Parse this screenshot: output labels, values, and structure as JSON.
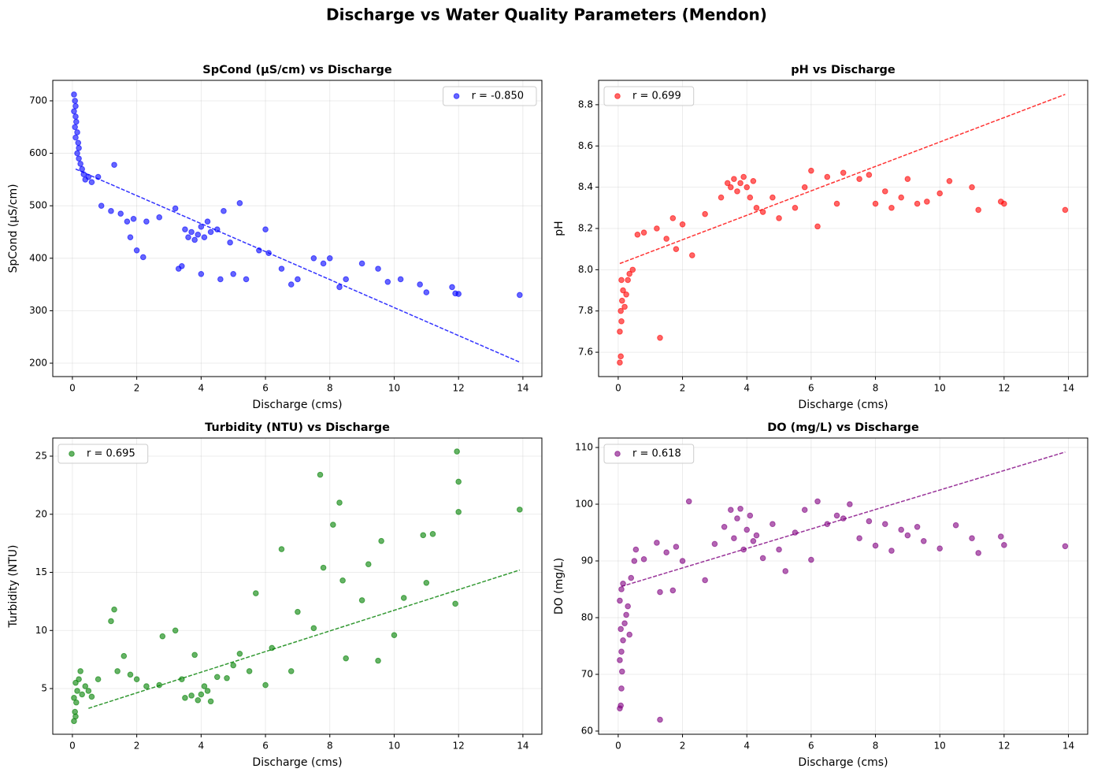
{
  "title": "Discharge vs Water Quality Parameters (Mendon)",
  "chart_data": [
    {
      "type": "scatter",
      "title": "SpCond (µS/cm) vs Discharge",
      "xlabel": "Discharge (cms)",
      "ylabel": "SpCond (µS/cm)",
      "x": [
        0.05,
        0.08,
        0.1,
        0.05,
        0.1,
        0.12,
        0.08,
        0.15,
        0.1,
        0.18,
        0.2,
        0.15,
        0.2,
        0.25,
        0.3,
        0.35,
        0.4,
        0.5,
        0.6,
        0.8,
        0.9,
        1.2,
        1.3,
        1.5,
        1.7,
        1.8,
        1.9,
        2.0,
        2.2,
        2.3,
        2.7,
        3.2,
        3.3,
        3.4,
        3.5,
        3.6,
        3.7,
        3.8,
        3.9,
        4.0,
        4.1,
        4.2,
        4.3,
        4.5,
        4.0,
        4.6,
        4.7,
        4.9,
        5.0,
        5.2,
        5.4,
        5.8,
        6.0,
        6.1,
        6.5,
        6.8,
        7.0,
        7.5,
        7.8,
        8.0,
        8.3,
        8.5,
        9.0,
        9.5,
        9.8,
        10.2,
        10.8,
        11.0,
        11.8,
        11.9,
        12.0,
        13.9
      ],
      "series": [
        {
          "name": "r = -0.850",
          "color": "blue",
          "values": [
            712,
            700,
            690,
            680,
            670,
            660,
            650,
            640,
            630,
            620,
            610,
            600,
            590,
            580,
            570,
            560,
            550,
            555,
            545,
            555,
            500,
            490,
            578,
            485,
            470,
            440,
            475,
            415,
            402,
            470,
            478,
            495,
            380,
            385,
            455,
            440,
            450,
            435,
            445,
            460,
            440,
            470,
            450,
            455,
            370,
            360,
            490,
            430,
            370,
            505,
            360,
            415,
            455,
            410,
            380,
            350,
            360,
            400,
            390,
            400,
            345,
            360,
            390,
            380,
            355,
            360,
            350,
            335,
            345,
            333,
            332,
            330
          ]
        }
      ],
      "trend": {
        "x": [
          0.1,
          13.9
        ],
        "values": [
          570,
          202
        ]
      },
      "xlim": [
        -0.61,
        14.59
      ],
      "ylim": [
        174.5,
        739
      ],
      "xticks": [
        0,
        2,
        4,
        6,
        8,
        10,
        12,
        14
      ],
      "yticks": [
        200,
        300,
        400,
        500,
        600,
        700
      ],
      "grid": true,
      "legend": "upper right"
    },
    {
      "type": "scatter",
      "title": "pH vs Discharge",
      "xlabel": "Discharge (cms)",
      "ylabel": "pH",
      "x": [
        0.05,
        0.08,
        0.05,
        0.1,
        0.08,
        0.12,
        0.15,
        0.1,
        0.2,
        0.25,
        0.3,
        0.35,
        0.45,
        0.6,
        0.8,
        1.2,
        1.3,
        1.5,
        1.7,
        1.8,
        2.0,
        2.3,
        2.7,
        3.2,
        3.4,
        3.5,
        3.6,
        3.7,
        3.8,
        3.9,
        4.0,
        4.1,
        4.2,
        4.3,
        4.5,
        4.8,
        5.0,
        5.5,
        5.8,
        6.0,
        6.2,
        6.5,
        6.8,
        7.0,
        7.5,
        7.8,
        8.0,
        8.3,
        8.5,
        8.8,
        9.0,
        9.3,
        9.6,
        10.0,
        10.3,
        11.0,
        11.2,
        11.9,
        12.0,
        13.9
      ],
      "series": [
        {
          "name": "r = 0.699",
          "color": "red",
          "values": [
            7.55,
            7.58,
            7.7,
            7.75,
            7.8,
            7.85,
            7.9,
            7.95,
            7.82,
            7.88,
            7.95,
            7.98,
            8.0,
            8.17,
            8.18,
            8.2,
            7.67,
            8.15,
            8.25,
            8.1,
            8.22,
            8.07,
            8.27,
            8.35,
            8.42,
            8.4,
            8.44,
            8.38,
            8.42,
            8.45,
            8.4,
            8.35,
            8.43,
            8.3,
            8.28,
            8.35,
            8.25,
            8.3,
            8.4,
            8.48,
            8.21,
            8.45,
            8.32,
            8.47,
            8.44,
            8.46,
            8.32,
            8.38,
            8.3,
            8.35,
            8.44,
            8.32,
            8.33,
            8.37,
            8.43,
            8.4,
            8.29,
            8.33,
            8.32,
            8.29
          ]
        }
      ],
      "trend": {
        "x": [
          0.05,
          13.9
        ],
        "values": [
          8.03,
          8.85
        ]
      },
      "xlim": [
        -0.61,
        14.6
      ],
      "ylim": [
        7.482,
        8.918
      ],
      "xticks": [
        0,
        2,
        4,
        6,
        8,
        10,
        12,
        14
      ],
      "yticks": [
        7.6,
        7.8,
        {
          "value": 8,
          "label": "8.0"
        },
        8.2,
        8.4,
        8.6,
        8.8
      ],
      "grid": true,
      "legend": "upper left"
    },
    {
      "type": "scatter",
      "title": "Turbidity (NTU) vs Discharge",
      "xlabel": "Discharge (cms)",
      "ylabel": "Turbidity (NTU)",
      "x": [
        0.05,
        0.1,
        0.08,
        0.12,
        0.05,
        0.15,
        0.1,
        0.2,
        0.25,
        0.3,
        0.4,
        0.5,
        0.6,
        0.8,
        1.2,
        1.3,
        1.4,
        1.6,
        1.8,
        2.0,
        2.3,
        2.8,
        2.7,
        3.2,
        3.4,
        3.5,
        3.7,
        3.8,
        3.9,
        4.0,
        4.1,
        4.2,
        4.3,
        4.5,
        4.8,
        5.0,
        5.2,
        5.5,
        5.7,
        6.0,
        6.2,
        6.5,
        6.8,
        7.0,
        7.5,
        7.7,
        7.8,
        8.1,
        8.3,
        8.4,
        8.5,
        9.0,
        9.2,
        9.5,
        9.6,
        10.0,
        10.3,
        10.9,
        11.2,
        11.0,
        11.9,
        11.95,
        12.0,
        12.0,
        13.9
      ],
      "series": [
        {
          "name": "r = 0.695",
          "color": "green",
          "values": [
            2.2,
            2.6,
            3.0,
            3.8,
            4.2,
            4.8,
            5.5,
            5.8,
            6.5,
            4.5,
            5.2,
            4.8,
            4.3,
            5.8,
            10.8,
            11.8,
            6.5,
            7.8,
            6.2,
            5.8,
            5.2,
            9.5,
            5.3,
            10.0,
            5.8,
            4.2,
            4.4,
            7.9,
            4.0,
            4.5,
            5.2,
            4.8,
            3.9,
            6.0,
            5.9,
            7.0,
            8.0,
            6.5,
            13.2,
            5.3,
            8.5,
            17.0,
            6.5,
            11.6,
            10.2,
            23.4,
            15.4,
            19.1,
            21.0,
            14.3,
            7.6,
            12.6,
            15.7,
            7.4,
            17.7,
            9.6,
            12.8,
            18.2,
            18.3,
            14.1,
            12.3,
            25.4,
            22.8,
            20.2,
            20.4
          ]
        }
      ],
      "trend": {
        "x": [
          0.5,
          13.9
        ],
        "values": [
          3.3,
          15.2
        ]
      },
      "xlim": [
        -0.61,
        14.59
      ],
      "ylim": [
        1.07,
        26.56
      ],
      "xticks": [
        0,
        2,
        4,
        6,
        8,
        10,
        12,
        14
      ],
      "yticks": [
        5,
        10,
        15,
        20,
        25
      ],
      "grid": true,
      "legend": "upper left"
    },
    {
      "type": "scatter",
      "title": "DO (mg/L) vs Discharge",
      "xlabel": "Discharge (cms)",
      "ylabel": "DO (mg/L)",
      "x": [
        0.05,
        0.08,
        0.1,
        0.12,
        0.05,
        0.1,
        0.15,
        0.08,
        0.2,
        0.25,
        0.05,
        0.1,
        0.15,
        0.3,
        0.35,
        0.4,
        0.5,
        0.55,
        0.8,
        1.2,
        1.3,
        1.3,
        1.5,
        1.7,
        1.8,
        2.0,
        2.2,
        2.7,
        3.0,
        3.3,
        3.5,
        3.6,
        3.7,
        3.8,
        3.9,
        4.0,
        4.1,
        4.2,
        4.3,
        4.5,
        4.8,
        5.0,
        5.2,
        5.5,
        5.8,
        6.0,
        6.2,
        6.5,
        6.8,
        7.0,
        7.2,
        7.5,
        7.8,
        8.0,
        8.3,
        8.5,
        8.8,
        9.0,
        9.3,
        9.5,
        10.0,
        10.5,
        11.0,
        11.2,
        11.9,
        12.0,
        13.9
      ],
      "series": [
        {
          "name": "r = 0.618",
          "color": "purple",
          "values": [
            64,
            64.5,
            67.5,
            70.5,
            72.5,
            74,
            76,
            78,
            79,
            80.5,
            83,
            85,
            86,
            82,
            77,
            87,
            90,
            92,
            90.3,
            93.2,
            62,
            84.5,
            91.5,
            84.8,
            92.5,
            90,
            100.5,
            86.6,
            93,
            96,
            99,
            94,
            97.5,
            99.2,
            92,
            95.5,
            98,
            93.5,
            94.5,
            90.5,
            96.5,
            92,
            88.2,
            95,
            99,
            90.2,
            100.5,
            96.5,
            98,
            97.5,
            100,
            94,
            97,
            92.7,
            96.5,
            91.8,
            95.5,
            94.5,
            96,
            93.5,
            92.2,
            96.3,
            94,
            91.4,
            94.3,
            92.8,
            92.6
          ]
        }
      ],
      "trend": {
        "x": [
          0.1,
          13.9
        ],
        "values": [
          85.5,
          109.2
        ]
      },
      "xlim": [
        -0.61,
        14.6
      ],
      "ylim": [
        59.44,
        111.67
      ],
      "xticks": [
        0,
        2,
        4,
        6,
        8,
        10,
        12,
        14
      ],
      "yticks": [
        60,
        70,
        80,
        90,
        100,
        110
      ],
      "grid": true,
      "legend": "upper left"
    }
  ]
}
